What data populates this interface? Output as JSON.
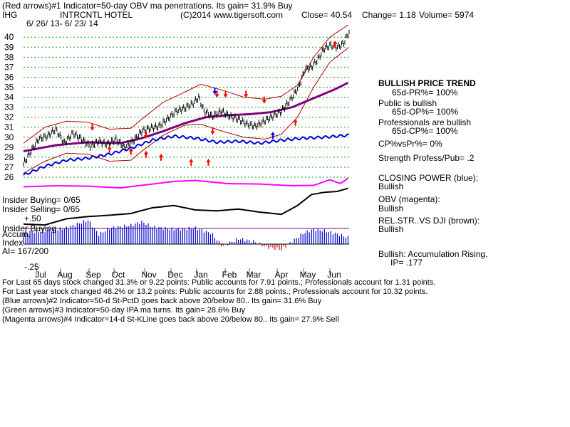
{
  "header": {
    "line1": "(Red arrows)#1 Indicator=50-day OBV ma penetrations. Its gain= 31.9% Buy",
    "ticker": "IHG",
    "company": "INTRCNTL HOTEL",
    "copyright": "(C)2014 www.tigersoft.com",
    "close": "Close=  40.54",
    "change": "Change= 1.18",
    "volume": "Volume=  5974",
    "date_range": "6/ 26/ 13-  6/ 23/ 14"
  },
  "chart_data": {
    "type": "line",
    "price_axis": {
      "ticks": [
        40,
        39,
        38,
        37,
        36,
        35,
        34,
        33,
        32,
        31,
        30,
        29,
        28,
        27,
        26
      ],
      "ylim": [
        26,
        40.8
      ]
    },
    "x_labels": [
      "Jul",
      "Aug",
      "Sep",
      "Oct",
      "Nov",
      "Dec",
      "Jan",
      "Feb",
      "Mar",
      "Apr",
      "May",
      "Jun"
    ],
    "price_anchors": [
      [
        0,
        27.3
      ],
      [
        8,
        28.8
      ],
      [
        14,
        29.8
      ],
      [
        22,
        30.1
      ],
      [
        30,
        30.8
      ],
      [
        38,
        29.4
      ],
      [
        46,
        30.4
      ],
      [
        54,
        29.8
      ],
      [
        62,
        29.1
      ],
      [
        70,
        29.6
      ],
      [
        78,
        29.3
      ],
      [
        86,
        29.8
      ],
      [
        94,
        29.0
      ],
      [
        102,
        29.6
      ],
      [
        110,
        30.6
      ],
      [
        118,
        30.9
      ],
      [
        126,
        31.1
      ],
      [
        134,
        31.8
      ],
      [
        142,
        32.6
      ],
      [
        150,
        32.9
      ],
      [
        158,
        33.4
      ],
      [
        163,
        34.0
      ],
      [
        168,
        32.6
      ],
      [
        176,
        32.1
      ],
      [
        184,
        32.6
      ],
      [
        192,
        32.1
      ],
      [
        200,
        31.8
      ],
      [
        208,
        31.3
      ],
      [
        216,
        31.1
      ],
      [
        224,
        31.6
      ],
      [
        232,
        32.1
      ],
      [
        240,
        32.6
      ],
      [
        248,
        33.7
      ],
      [
        256,
        35.0
      ],
      [
        262,
        36.8
      ],
      [
        268,
        37.0
      ],
      [
        274,
        37.8
      ],
      [
        280,
        38.9
      ],
      [
        286,
        39.2
      ],
      [
        292,
        39.0
      ],
      [
        298,
        39.4
      ],
      [
        303,
        40.54
      ]
    ],
    "upper_band_anchors": [
      [
        0,
        29.4
      ],
      [
        20,
        31.0
      ],
      [
        40,
        31.6
      ],
      [
        60,
        31.5
      ],
      [
        80,
        30.8
      ],
      [
        100,
        30.9
      ],
      [
        110,
        31.8
      ],
      [
        130,
        33.5
      ],
      [
        150,
        34.5
      ],
      [
        165,
        35.3
      ],
      [
        185,
        34.7
      ],
      [
        205,
        34.0
      ],
      [
        225,
        33.8
      ],
      [
        240,
        34.1
      ],
      [
        255,
        35.2
      ],
      [
        270,
        38.0
      ],
      [
        285,
        40.0
      ],
      [
        303,
        41.3
      ]
    ],
    "lower_band_anchors": [
      [
        0,
        26.4
      ],
      [
        20,
        27.6
      ],
      [
        40,
        28.4
      ],
      [
        60,
        28.3
      ],
      [
        80,
        27.6
      ],
      [
        100,
        27.7
      ],
      [
        110,
        28.6
      ],
      [
        130,
        30.2
      ],
      [
        150,
        31.2
      ],
      [
        165,
        31.3
      ],
      [
        185,
        30.6
      ],
      [
        205,
        30.0
      ],
      [
        225,
        29.8
      ],
      [
        240,
        30.3
      ],
      [
        255,
        32.0
      ],
      [
        270,
        35.0
      ],
      [
        285,
        37.5
      ],
      [
        303,
        39.0
      ]
    ],
    "ma_anchors": [
      [
        0,
        28.6
      ],
      [
        30,
        29.2
      ],
      [
        60,
        29.5
      ],
      [
        90,
        29.4
      ],
      [
        110,
        29.9
      ],
      [
        130,
        30.6
      ],
      [
        150,
        31.4
      ],
      [
        170,
        32.0
      ],
      [
        190,
        32.2
      ],
      [
        210,
        32.3
      ],
      [
        230,
        32.5
      ],
      [
        250,
        33.0
      ],
      [
        270,
        33.9
      ],
      [
        290,
        34.8
      ],
      [
        303,
        35.5
      ]
    ],
    "closing_power_anchors": [
      [
        0,
        26.2
      ],
      [
        20,
        27.1
      ],
      [
        40,
        27.7
      ],
      [
        60,
        27.9
      ],
      [
        80,
        28.3
      ],
      [
        100,
        28.9
      ],
      [
        120,
        29.7
      ],
      [
        140,
        30.1
      ],
      [
        160,
        29.9
      ],
      [
        180,
        29.5
      ],
      [
        200,
        29.6
      ],
      [
        220,
        29.4
      ],
      [
        240,
        29.7
      ],
      [
        260,
        29.9
      ],
      [
        280,
        30.0
      ],
      [
        303,
        30.2
      ]
    ],
    "red_down_arrows": [
      [
        64,
        31.0
      ],
      [
        114,
        30.2
      ],
      [
        176,
        30.6
      ],
      [
        180,
        34.3
      ],
      [
        188,
        34.3
      ],
      [
        207,
        34.3
      ],
      [
        224,
        33.7
      ]
    ],
    "red_up_arrows": [
      [
        80,
        28.8
      ],
      [
        100,
        28.6
      ],
      [
        114,
        28.3
      ],
      [
        128,
        28.0
      ],
      [
        156,
        27.5
      ],
      [
        172,
        27.5
      ],
      [
        253,
        31.5
      ],
      [
        290,
        39.3
      ]
    ],
    "blue_down_arrows": [
      [
        178,
        34.6
      ]
    ],
    "blue_up_arrows": [
      [
        232,
        30.2
      ]
    ],
    "obv_anchors": [
      [
        0,
        0.55
      ],
      [
        30,
        0.6
      ],
      [
        60,
        0.58
      ],
      [
        90,
        0.5
      ],
      [
        110,
        0.62
      ],
      [
        140,
        0.8
      ],
      [
        160,
        0.85
      ],
      [
        190,
        0.7
      ],
      [
        220,
        0.68
      ],
      [
        250,
        0.6
      ],
      [
        270,
        0.62
      ],
      [
        285,
        0.88
      ],
      [
        295,
        0.7
      ],
      [
        303,
        1.0
      ]
    ],
    "relstr_anchors": [
      [
        0,
        0.18
      ],
      [
        20,
        0.16
      ],
      [
        40,
        0.3
      ],
      [
        60,
        0.35
      ],
      [
        80,
        0.38
      ],
      [
        100,
        0.42
      ],
      [
        120,
        0.55
      ],
      [
        140,
        0.6
      ],
      [
        160,
        0.5
      ],
      [
        180,
        0.48
      ],
      [
        200,
        0.52
      ],
      [
        220,
        0.45
      ],
      [
        240,
        0.4
      ],
      [
        255,
        0.6
      ],
      [
        268,
        0.85
      ],
      [
        280,
        0.9
      ],
      [
        292,
        0.92
      ],
      [
        303,
        1.0
      ]
    ],
    "ai_axis": {
      "top": "+.50",
      "bottom": "-.25"
    },
    "accum_samples": [
      [
        0,
        0.22
      ],
      [
        20,
        0.25
      ],
      [
        40,
        0.3
      ],
      [
        60,
        0.45
      ],
      [
        70,
        0.18
      ],
      [
        80,
        0.3
      ],
      [
        100,
        0.35
      ],
      [
        110,
        0.42
      ],
      [
        120,
        0.32
      ],
      [
        140,
        0.28
      ],
      [
        160,
        0.3
      ],
      [
        175,
        0.2
      ],
      [
        185,
        -0.04
      ],
      [
        200,
        0.1
      ],
      [
        215,
        0.05
      ],
      [
        225,
        -0.05
      ],
      [
        240,
        -0.1
      ],
      [
        250,
        0.05
      ],
      [
        260,
        0.2
      ],
      [
        270,
        0.28
      ],
      [
        280,
        0.25
      ],
      [
        290,
        0.2
      ],
      [
        303,
        0.12
      ]
    ]
  },
  "right_panel": {
    "trend_title": "BULLISH PRICE TREND",
    "trend_value": "65d-PR%= 100%",
    "public_title": "Public is bullish",
    "public_value": "65d-OP%= 100%",
    "prof_title": "Professionals are bullish",
    "prof_value": "65d-CP%= 100%",
    "cp_vs_pr": "CP%vsPr%=  0%",
    "strength": "Strength Profess/Pub= .2",
    "closing_power_title": "CLOSING POWER (blue):",
    "closing_power_value": "Bullish",
    "obv_title": "OBV (magenta):",
    "obv_value": "Bullish",
    "relstr_title": "REL.STR..VS DJI (brown):",
    "relstr_value": "Bullish",
    "accum_title": "Bullish: Accumulation Rising.",
    "accum_ip": "IP=  .177"
  },
  "left_labels": {
    "insider_buying": "Insider Buying= 0/65",
    "insider_selling": "Insider Selling= 0/65",
    "insider_buying2": "Insider Buying",
    "accum": "Accum.",
    "index": "Index",
    "ai": "AI= 167/200"
  },
  "footer": {
    "line1": "For Last 65 days stock changed  31.3% or  9.22 points:  Public accounts for  7.91 points.;  Professionals account for  1.31 points.",
    "line2": "For Last year stock changed  48.2% or  13.2 points:  Public accounts for  2.88 points.;  Professionals account for  10.32 points.",
    "line3": "(Blue arrows)#2 Indicator=50-d St-PctD goes back above 20/below 80.. Its gain= 31.6% Buy",
    "line4": "(Green arrows)#3 Indicator=50-day IPA ma turns. Its gain= 28.6% Buy",
    "line5": "(Magenta arrows)#4 Indicator=14-d St-KLine goes back above 20/below 80.. Its gain= 27.9% Sell"
  },
  "colors": {
    "price": "#000000",
    "bands": "#aa0000",
    "ma": "#800080",
    "closing_power": "#0000dd",
    "obv": "#ff00ff",
    "relstr": "#000000",
    "accum_pos": "#0000cc",
    "accum_neg": "#cc0000",
    "grid": "#00aa00",
    "arrow_red": "#ff0000",
    "arrow_blue": "#0000ff"
  }
}
